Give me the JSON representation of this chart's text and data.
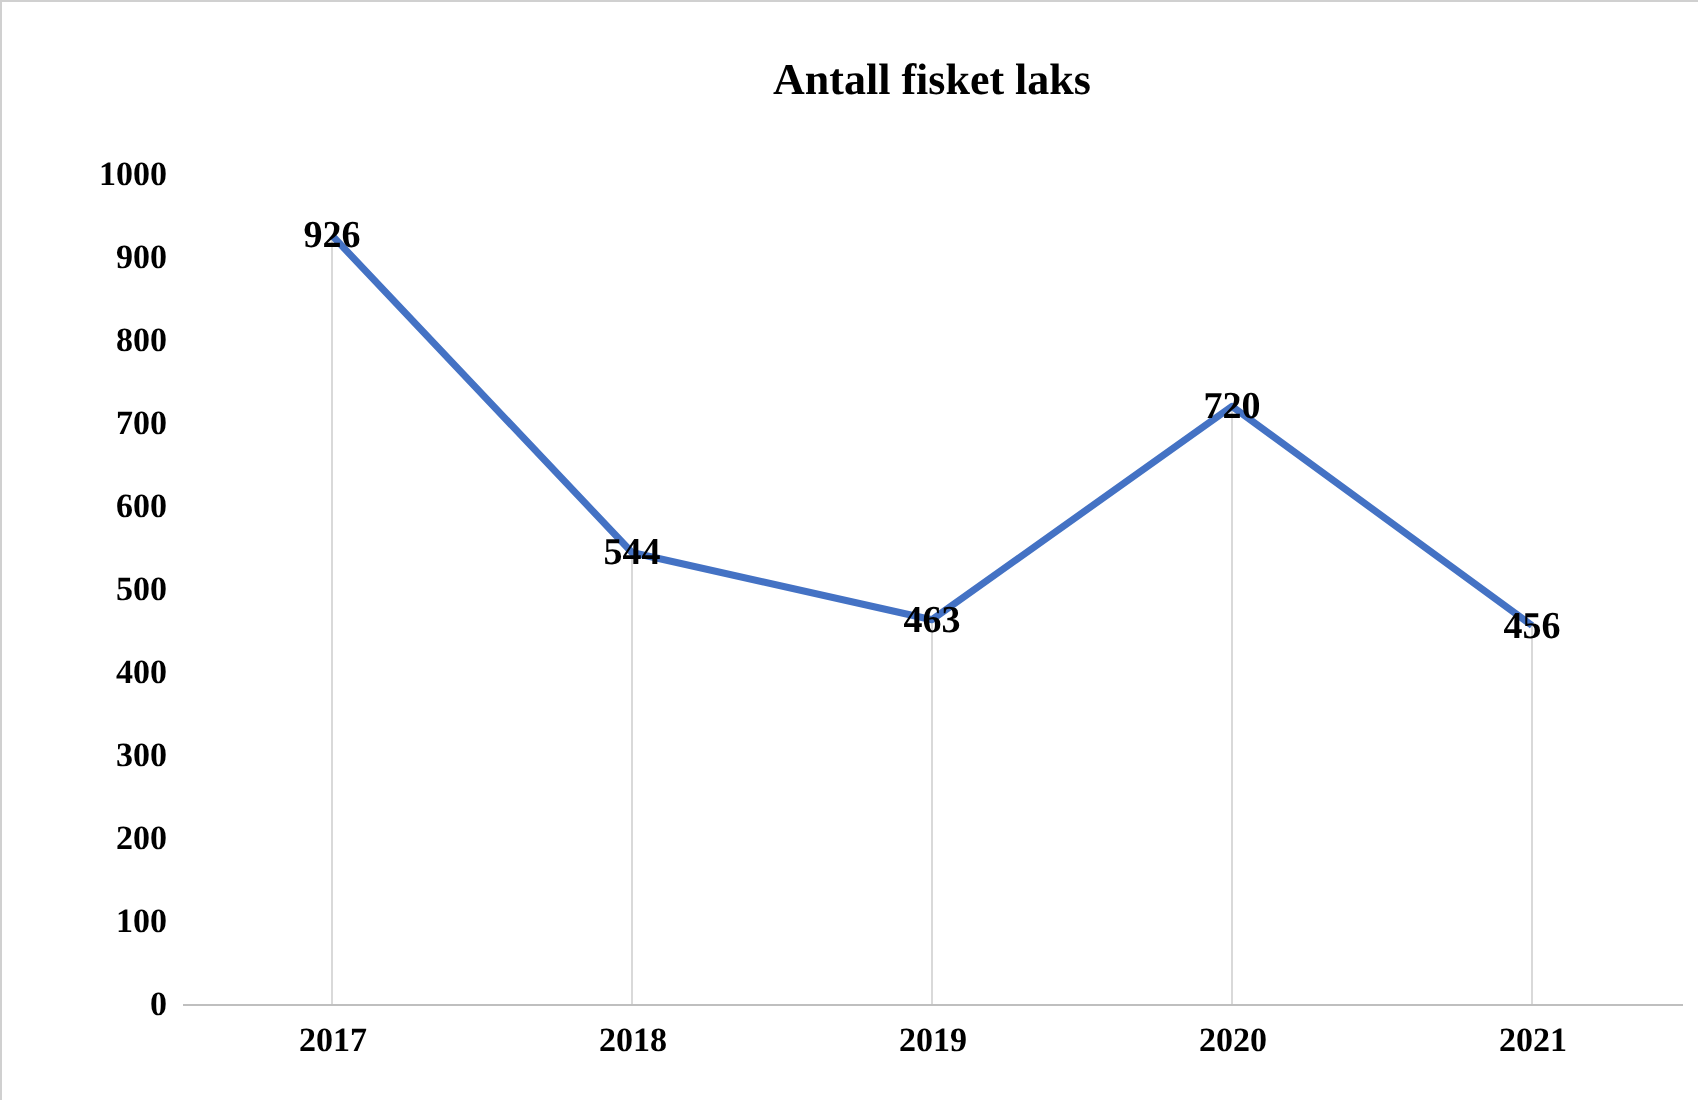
{
  "chart_data": {
    "type": "line",
    "title": "Antall fisket laks",
    "categories": [
      "2017",
      "2018",
      "2019",
      "2020",
      "2021"
    ],
    "series": [
      {
        "color": "#4472c4",
        "values": [
          926,
          544,
          463,
          720,
          456
        ]
      }
    ],
    "ylim": [
      0,
      1000
    ],
    "yticks": [
      0,
      100,
      200,
      300,
      400,
      500,
      600,
      700,
      800,
      900,
      1000
    ],
    "data_labels": true,
    "grid": "x",
    "marker": "none",
    "line_style": "solid"
  }
}
